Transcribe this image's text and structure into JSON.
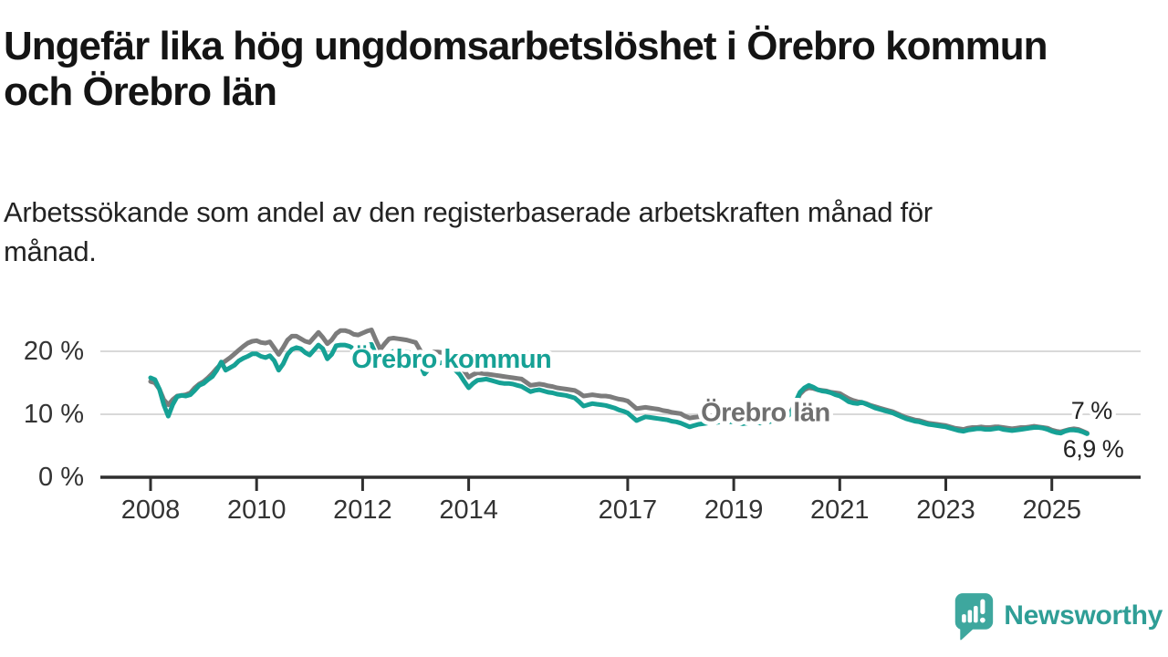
{
  "header": {
    "title": "Ungefär lika hög ungdomsarbetslöshet i Örebro kommun och Örebro län",
    "title_lines": [
      "Ungefär lika hög ungdomsarbetslöshet i Örebro kommun",
      "och Örebro län"
    ],
    "subtitle_lines": [
      "Arbetssökande som andel av den registerbaserade arbetskraften månad för",
      "månad."
    ]
  },
  "branding": {
    "name": "Newsworthy",
    "icon": "speech-bubble-bar-chart-icon",
    "color": "#2f9e96"
  },
  "colors": {
    "teal": "#16a195",
    "gray": "#7c7c7c",
    "gray_label": "#6f6f6f",
    "dark": "#222222",
    "axis": "#2f2f2f",
    "tick_text": "#333333",
    "grid": "#d9d9d9"
  },
  "chart_data": {
    "type": "line",
    "title": "Ungefär lika hög ungdomsarbetslöshet i Örebro kommun och Örebro län",
    "subtitle": "Arbetssökande som andel av den registerbaserade arbetskraften månad för månad.",
    "unit": "%",
    "x_start": "2008-01",
    "frequency": "monthly",
    "x_ticks": [
      2008,
      2010,
      2012,
      2014,
      2017,
      2019,
      2021,
      2023,
      2025
    ],
    "y_ticks": [
      {
        "value": 0,
        "label": "0 %"
      },
      {
        "value": 10,
        "label": "10 %"
      },
      {
        "value": 20,
        "label": "20 %"
      }
    ],
    "ylim": [
      0,
      24
    ],
    "xlim_years": [
      2007.9,
      2026.7
    ],
    "grid": "horizontal",
    "legend_position": "inline-labels",
    "series": [
      {
        "name": "Örebro län",
        "color_key": "gray",
        "end_value_label": "7 %",
        "values": [
          15.2,
          15.0,
          14.0,
          12.3,
          11.5,
          12.3,
          12.9,
          13.0,
          13.1,
          13.4,
          14.2,
          14.8,
          15.2,
          15.8,
          16.5,
          17.3,
          18.0,
          18.5,
          19.0,
          19.6,
          20.2,
          20.8,
          21.3,
          21.6,
          21.7,
          21.4,
          21.3,
          21.5,
          20.5,
          19.5,
          20.6,
          21.8,
          22.4,
          22.4,
          22.0,
          21.6,
          21.4,
          22.2,
          23.0,
          22.2,
          21.2,
          21.8,
          22.8,
          23.3,
          23.3,
          23.1,
          22.7,
          22.6,
          22.9,
          23.2,
          23.4,
          21.8,
          20.3,
          21.2,
          22.0,
          22.1,
          22.0,
          21.9,
          21.8,
          21.6,
          21.4,
          20.2,
          18.9,
          19.4,
          19.9,
          19.9,
          19.8,
          19.6,
          19.3,
          18.9,
          17.9,
          16.9,
          15.9,
          16.3,
          16.6,
          16.5,
          16.4,
          16.3,
          16.2,
          16.1,
          16.0,
          15.9,
          15.8,
          15.7,
          15.6,
          15.1,
          14.6,
          14.7,
          14.8,
          14.7,
          14.5,
          14.4,
          14.2,
          14.1,
          14.0,
          13.9,
          13.8,
          13.4,
          12.9,
          13.0,
          13.1,
          13.0,
          12.9,
          12.9,
          12.8,
          12.6,
          12.4,
          12.3,
          12.1,
          11.5,
          10.9,
          11.0,
          11.1,
          11.0,
          10.9,
          10.8,
          10.6,
          10.5,
          10.3,
          10.2,
          10.1,
          9.7,
          9.4,
          9.5,
          9.6,
          9.6,
          9.7,
          9.7,
          9.7,
          9.8,
          9.8,
          9.8,
          9.8,
          9.6,
          9.3,
          9.4,
          9.4,
          9.4,
          9.4,
          9.5,
          9.6,
          9.7,
          9.8,
          9.9,
          10.0,
          10.5,
          11.8,
          13.2,
          13.9,
          14.2,
          14.1,
          13.9,
          13.8,
          13.7,
          13.5,
          13.4,
          13.3,
          12.9,
          12.5,
          12.2,
          12.0,
          11.9,
          11.7,
          11.4,
          11.2,
          11.0,
          10.8,
          10.6,
          10.4,
          10.1,
          9.8,
          9.5,
          9.3,
          9.1,
          9.0,
          8.8,
          8.6,
          8.5,
          8.4,
          8.3,
          8.2,
          8.0,
          7.8,
          7.7,
          7.6,
          7.8,
          7.9,
          7.9,
          8.0,
          7.9,
          7.9,
          8.0,
          8.0,
          7.9,
          7.8,
          7.7,
          7.8,
          7.9,
          7.9,
          8.0,
          8.1,
          8.0,
          7.9,
          7.8,
          7.5,
          7.3,
          7.2,
          7.4,
          7.6,
          7.7,
          7.6,
          7.3,
          7.0
        ]
      },
      {
        "name": "Örebro kommun",
        "color_key": "teal",
        "end_value_label": "6,9 %",
        "values": [
          15.8,
          15.5,
          14.0,
          11.5,
          9.7,
          11.5,
          12.8,
          13.0,
          12.9,
          13.1,
          13.8,
          14.6,
          14.9,
          15.5,
          16.0,
          17.0,
          18.3,
          17.0,
          17.4,
          17.8,
          18.5,
          18.9,
          19.2,
          19.6,
          19.6,
          19.2,
          19.0,
          19.3,
          18.5,
          17.0,
          18.0,
          19.5,
          20.3,
          20.6,
          20.4,
          19.8,
          19.4,
          20.2,
          21.0,
          20.4,
          18.8,
          19.5,
          20.9,
          21.0,
          21.0,
          20.8,
          20.4,
          20.6,
          20.9,
          21.0,
          21.1,
          19.5,
          17.6,
          18.8,
          19.8,
          20.0,
          20.1,
          20.0,
          19.9,
          19.7,
          19.5,
          18.0,
          16.4,
          17.2,
          17.9,
          18.1,
          18.2,
          17.9,
          17.6,
          17.0,
          16.3,
          15.2,
          14.2,
          14.9,
          15.4,
          15.5,
          15.6,
          15.4,
          15.2,
          15.0,
          14.9,
          14.9,
          14.8,
          14.6,
          14.4,
          14.0,
          13.6,
          13.8,
          13.9,
          13.7,
          13.5,
          13.4,
          13.2,
          13.1,
          13.0,
          12.8,
          12.6,
          12.0,
          11.3,
          11.5,
          11.7,
          11.6,
          11.5,
          11.4,
          11.2,
          11.0,
          10.7,
          10.5,
          10.2,
          9.6,
          9.0,
          9.3,
          9.6,
          9.5,
          9.4,
          9.3,
          9.2,
          9.1,
          8.9,
          8.8,
          8.6,
          8.3,
          8.0,
          8.2,
          8.4,
          8.5,
          8.6,
          8.7,
          8.7,
          8.8,
          8.8,
          8.8,
          8.8,
          8.7,
          8.5,
          8.6,
          8.7,
          8.7,
          8.6,
          8.7,
          8.8,
          9.0,
          9.2,
          9.4,
          9.6,
          10.2,
          12.0,
          13.5,
          14.2,
          14.6,
          14.3,
          13.9,
          13.7,
          13.6,
          13.4,
          13.1,
          12.9,
          12.5,
          12.0,
          11.8,
          11.7,
          11.9,
          11.6,
          11.3,
          11.0,
          10.8,
          10.6,
          10.4,
          10.2,
          9.9,
          9.6,
          9.3,
          9.1,
          8.9,
          8.8,
          8.6,
          8.4,
          8.3,
          8.2,
          8.1,
          8.0,
          7.8,
          7.6,
          7.4,
          7.3,
          7.5,
          7.6,
          7.7,
          7.7,
          7.6,
          7.6,
          7.7,
          7.8,
          7.6,
          7.5,
          7.4,
          7.5,
          7.6,
          7.7,
          7.8,
          7.9,
          7.9,
          7.8,
          7.6,
          7.3,
          7.1,
          7.0,
          7.3,
          7.5,
          7.5,
          7.4,
          7.2,
          6.9
        ]
      }
    ],
    "annotations": [
      {
        "text": "Örebro kommun",
        "x_year": 2011.79,
        "y_value": 18.7,
        "anchor": "start",
        "color_key": "teal",
        "weight": "bold",
        "size": 29
      },
      {
        "text": "Örebro län",
        "x_year": 2018.38,
        "y_value": 10.25,
        "anchor": "start",
        "color_key": "gray_label",
        "weight": "bold",
        "size": 29
      },
      {
        "text": "7 %",
        "x_year": 2025.75,
        "y_value": 10.55,
        "anchor": "middle",
        "color_key": "dark",
        "weight": "normal",
        "size": 27
      },
      {
        "text": "6,9 %",
        "x_year": 2025.78,
        "y_value": 4.5,
        "anchor": "middle",
        "color_key": "dark",
        "weight": "normal",
        "size": 27
      }
    ]
  }
}
